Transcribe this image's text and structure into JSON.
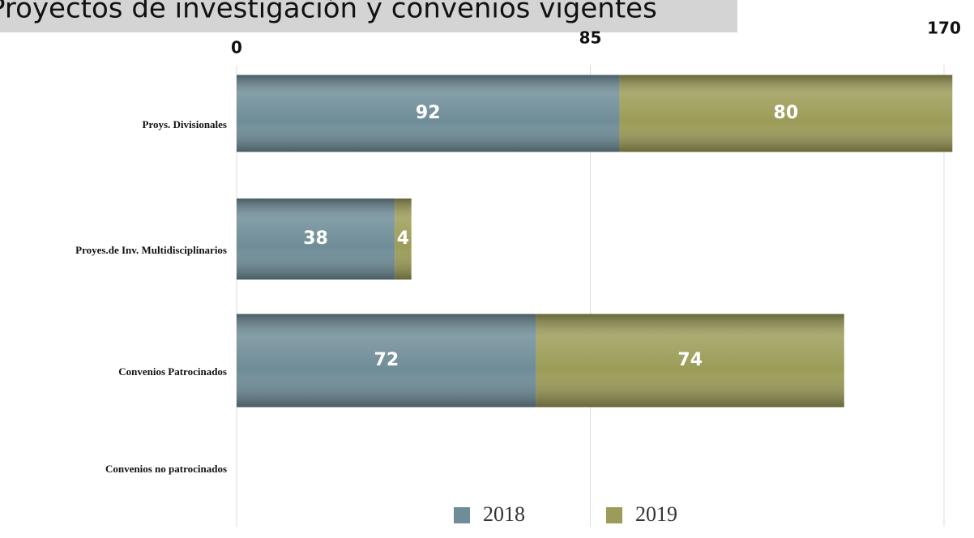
{
  "chart_data": {
    "type": "stacked-bar-horizontal",
    "title": "Proyectos de investigación y convenios vigentes",
    "categories": [
      "Proys. Divisionales",
      "Proyes.de Inv. Multidisciplinarios",
      "Convenios  Patrocinados",
      "Convenios no patrocinados"
    ],
    "series": [
      {
        "name": "2018",
        "color": "#6f8d98",
        "values": [
          92,
          38,
          72,
          null
        ]
      },
      {
        "name": "2019",
        "color": "#9c9c58",
        "values": [
          80,
          4,
          74,
          null
        ]
      }
    ],
    "xlim": [
      0,
      170
    ],
    "xticks": [
      0,
      85,
      170
    ],
    "grid": true,
    "legend": "bottom"
  }
}
